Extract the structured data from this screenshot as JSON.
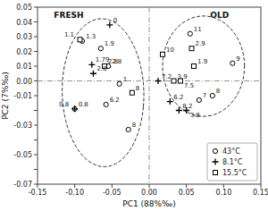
{
  "chart_data": {
    "type": "scatter",
    "xlabel": "PC1 (88%‰)",
    "ylabel": "PC2 (7%‰)",
    "xlim": [
      -0.15,
      0.15
    ],
    "ylim": [
      -0.07,
      0.05
    ],
    "xticks": [
      -0.15,
      {
        "value": -0.1,
        "label": "-0.10"
      },
      -0.05,
      {
        "value": 0,
        "label": "0.00"
      },
      0.05,
      {
        "value": 0.1,
        "label": "0.10"
      },
      0.15
    ],
    "yticks": [
      -0.07,
      {
        "value": -0.06,
        "label": null
      },
      -0.05,
      {
        "value": -0.04,
        "label": null
      },
      -0.03,
      {
        "value": -0.02,
        "label": null
      },
      -0.01,
      {
        "value": 0,
        "label": "0.00"
      },
      0.01,
      0.02,
      0.03,
      0.04,
      0.05
    ],
    "grid": false,
    "legend": "lower right",
    "hlines": [
      0
    ],
    "vlines": [
      0
    ],
    "series": [
      {
        "name": "43°C",
        "marker": "circle",
        "color": "#000000",
        "x": [
          -0.09,
          -0.065,
          -0.055,
          -0.058,
          -0.1,
          -0.04,
          -0.028,
          0.055,
          0.067,
          0.112,
          0.085
        ],
        "values": [
          0.027,
          0.022,
          0.01,
          -0.016,
          -0.019,
          -0.002,
          -0.033,
          0.032,
          -0.013,
          0.012,
          -0.01
        ],
        "point_labels": [
          "1.3",
          "1.9",
          "2.8",
          "6.2",
          "0.8",
          "1",
          "8",
          "11",
          "7",
          "9",
          "8"
        ]
      },
      {
        "name": "8.1°C",
        "marker": "plus",
        "color": "#000000",
        "x": [
          -0.053,
          -0.077,
          -0.075,
          -0.1,
          0.012,
          0.028,
          0.04,
          0.05
        ],
        "values": [
          0.038,
          0.011,
          0.005,
          -0.019,
          0.0,
          -0.014,
          -0.02,
          -0.02
        ],
        "point_labels": [
          "0",
          "1.79",
          "2.8",
          "0.8",
          "7.2",
          "6.2",
          "8.2",
          "3.8"
        ]
      },
      {
        "name": "15.5°C",
        "marker": "square",
        "color": "#000000",
        "x": [
          -0.093,
          -0.06,
          -0.023,
          0.018,
          0.057,
          0.06,
          0.033,
          0.042
        ],
        "values": [
          0.028,
          0.01,
          -0.008,
          0.018,
          0.022,
          0.01,
          0.0,
          0.0
        ],
        "point_labels": [
          "1.1",
          "2.8",
          "8",
          "10",
          "2.9",
          "1.9",
          "3.9",
          "7.5"
        ]
      }
    ],
    "ellipses": [
      {
        "cx": -0.062,
        "cy": -0.008,
        "width": 0.11,
        "height": 0.1,
        "angle": -10
      },
      {
        "cx": 0.073,
        "cy": 0.01,
        "width": 0.11,
        "height": 0.068,
        "angle": 0
      }
    ],
    "annotations": [
      {
        "text": "FRESH",
        "x": -0.128,
        "y": 0.043
      },
      {
        "text": "OLD",
        "x": 0.082,
        "y": 0.043
      }
    ]
  }
}
